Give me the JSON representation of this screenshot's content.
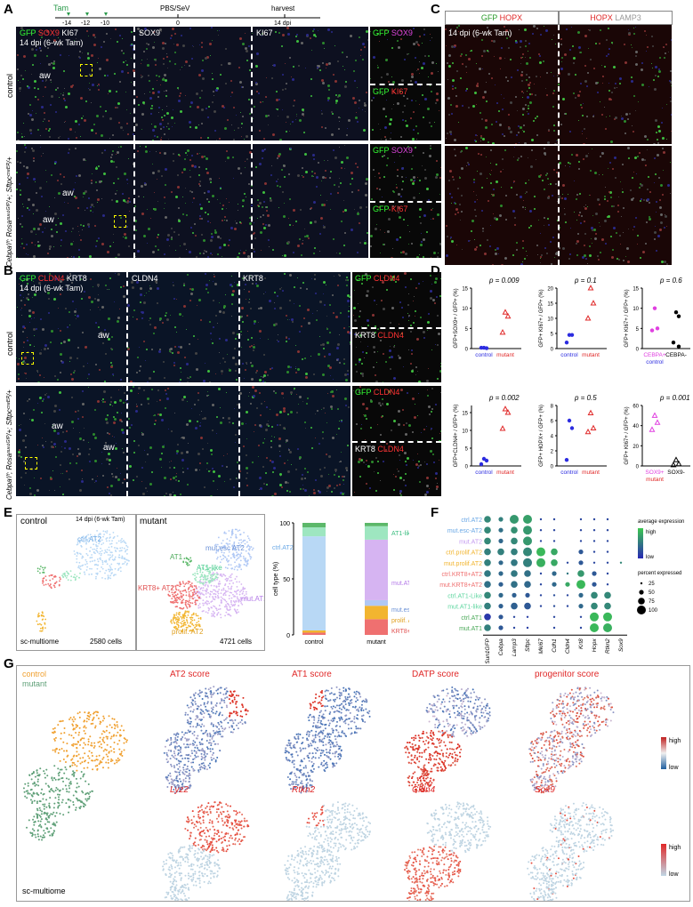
{
  "panels": {
    "A": "A",
    "B": "B",
    "C": "C",
    "D": "D",
    "E": "E",
    "F": "F",
    "G": "G"
  },
  "timeline": {
    "tam": "Tam",
    "days": [
      "-14",
      "-12",
      "-10"
    ],
    "treatment": "PBS/SeV",
    "zero": "0",
    "harvest": "harvest",
    "harvest_day": "14 dpi"
  },
  "panelA": {
    "ctrl_title_parts": [
      "GFP",
      "SOX9",
      "KI67"
    ],
    "ctrl_sub": "14 dpi (6-wk Tam)",
    "col2": "SOX9",
    "col3": "KI67",
    "inset1": [
      "GFP",
      "SOX9"
    ],
    "inset2": [
      "GFP",
      "KI67"
    ],
    "aw": "aw",
    "row_ctrl": "control",
    "row_mut": "Cebpaᶠ/ᶠ; Rosaˢᵘⁿ¹ᴳᶠᴾ/+; Sftpcᶜʳᵉᴱᴿ/+"
  },
  "panelB": {
    "title_parts": [
      "GFP",
      "CLDN4",
      "KRT8"
    ],
    "sub": "14 dpi (6-wk Tam)",
    "col2": "CLDN4",
    "col3": "KRT8",
    "inset1": [
      "GFP",
      "CLDN4"
    ],
    "inset2": [
      "KRT8",
      "CLDN4"
    ],
    "aw": "aw",
    "row_ctrl": "control",
    "row_mut": "Cebpaᶠ/ᶠ; Rosaˢᵘⁿ¹ᴳᶠᴾ/+; Sftpcᶜʳᵉᴱᴿ/+"
  },
  "panelC": {
    "left": [
      "GFP",
      "HOPX"
    ],
    "right": [
      "HOPX",
      "LAMP3"
    ],
    "sub": "14 dpi (6-wk Tam)"
  },
  "panelD": {
    "colors": {
      "control": "#2c2ce0",
      "mutant": "#e02828",
      "magenta": "#e040e0"
    },
    "plots": [
      {
        "p": "p = 0.009",
        "ylabel": "GFP+SOX9+ / GFP+ (%)",
        "yticks": [
          "0",
          "5",
          "10",
          "15"
        ],
        "ymax": 15,
        "xlabels": [
          "control",
          "mutant"
        ],
        "groups": [
          {
            "values": [
              0.2,
              0.1,
              0.2
            ],
            "shape": "circle",
            "color": "control"
          },
          {
            "values": [
              9,
              8,
              4
            ],
            "shape": "triangle",
            "color": "mutant"
          }
        ]
      },
      {
        "p": "p = 0.1",
        "ylabel": "GFP+ KI67+ / GFP+ (%)",
        "yticks": [
          "0",
          "5",
          "10",
          "15",
          "20"
        ],
        "ymax": 20,
        "xlabels": [
          "control",
          "mutant"
        ],
        "groups": [
          {
            "values": [
              4.5,
              4.5,
              2
            ],
            "shape": "circle",
            "color": "control"
          },
          {
            "values": [
              20,
              15,
              10
            ],
            "shape": "triangle",
            "color": "mutant"
          }
        ]
      },
      {
        "p": "p = 0.6",
        "ylabel": "GFP+ KI67+ / GFP+ (%)",
        "yticks": [
          "0",
          "5",
          "10",
          "15"
        ],
        "ymax": 15,
        "xlabels": [
          "CEBPA+",
          "CEBPA-"
        ],
        "xsub": "control",
        "groups": [
          {
            "values": [
              10,
              5,
              4.5
            ],
            "shape": "circle",
            "color": "magenta"
          },
          {
            "values": [
              9,
              8,
              1.5,
              0.5
            ],
            "shape": "circle",
            "color": "black"
          }
        ]
      },
      {
        "p": "p = 0.002",
        "ylabel": "GFP+CLDN4+ / GFP+ (%)",
        "yticks": [
          "0",
          "5",
          "10",
          "15"
        ],
        "ymax": 17,
        "xlabels": [
          "control",
          "mutant"
        ],
        "groups": [
          {
            "values": [
              2,
              1.5,
              0.5
            ],
            "shape": "circle",
            "color": "control"
          },
          {
            "values": [
              16,
              15,
              10.5
            ],
            "shape": "triangle",
            "color": "mutant"
          }
        ]
      },
      {
        "p": "p = 0.5",
        "ylabel": "GFP+ HOPX+ / GFP+ (%)",
        "yticks": [
          "0",
          "2",
          "4",
          "6",
          "8"
        ],
        "ymax": 8,
        "xlabels": [
          "control",
          "mutant"
        ],
        "groups": [
          {
            "values": [
              6,
              5,
              0.8
            ],
            "shape": "circle",
            "color": "control"
          },
          {
            "values": [
              7,
              5,
              4.5
            ],
            "shape": "triangle",
            "color": "mutant"
          }
        ]
      },
      {
        "p": "p = 0.001",
        "ylabel": "GFP+ KI67+ / GFP+ (%)",
        "yticks": [
          "0",
          "20",
          "40",
          "60"
        ],
        "ymax": 60,
        "xlabels": [
          "SOX9+",
          "SOX9-"
        ],
        "xsub": "mutant",
        "groups": [
          {
            "values": [
              50,
              43,
              36
            ],
            "shape": "triangle",
            "color": "magenta"
          },
          {
            "values": [
              6,
              2,
              1
            ],
            "shape": "triangle",
            "color": "black"
          }
        ]
      }
    ]
  },
  "panelE": {
    "ctrl_title": "control",
    "ctrl_sub": "14 dpi (6-wk Tam)",
    "ctrl_count": "2580 cells",
    "assay": "sc-multiome",
    "mut_title": "mutant",
    "mut_count": "4721 cells",
    "ctrl_labels": [
      "ctrl.AT2"
    ],
    "mut_labels": [
      "mut.esc AT2",
      "AT1",
      "AT1-like",
      "KRT8+ AT2",
      "mut.AT2",
      "prolif. AT2"
    ],
    "bar": {
      "ylabel": "cell type (%)",
      "yticks": [
        "0",
        "50",
        "100"
      ],
      "xlabels": [
        "control",
        "mutant"
      ],
      "categories": [
        "KRT8+ AT2",
        "prolif. AT2",
        "mut.esc AT2",
        "mut.AT2",
        "ctrl.AT2",
        "AT1-like",
        "AT1"
      ],
      "colors": [
        "#ef7070",
        "#f2b530",
        "#b0c8f5",
        "#d6b4f2",
        "#b8d8f5",
        "#9ee6c0",
        "#5cb86a"
      ],
      "control": [
        2,
        2,
        0,
        0,
        84,
        8,
        4
      ],
      "mutant": [
        14,
        12,
        5,
        54,
        0,
        12,
        3
      ],
      "labels": [
        "ctrl.AT2",
        "AT1-like",
        "mut.AT2",
        "mut.esc AT2",
        "prolif. AT2",
        "KRT8+ AT2"
      ]
    }
  },
  "panelF": {
    "rows": [
      "ctrl.AT2",
      "mut.esc-AT2",
      "mut.AT2",
      "ctrl.prolif.AT2",
      "mut.prolif.AT2",
      "ctrl.KRT8+AT2",
      "mut.KRT8+AT2",
      "ctrl.AT1-Like",
      "mut.AT1-like",
      "ctrl.AT1",
      "mut.AT1"
    ],
    "row_colors": [
      "#6aa8e6",
      "#6aa8e6",
      "#c49bf0",
      "#f2b530",
      "#f2b530",
      "#ef7070",
      "#ef7070",
      "#5fd6a0",
      "#5fd6a0",
      "#4caa5a",
      "#4caa5a"
    ],
    "genes": [
      "Sun1GFP",
      "Cebpa",
      "Lamp3",
      "Sftpc",
      "Mki67",
      "Cdh1",
      "Cldn4",
      "Krt8",
      "Hopx",
      "Rtkn2",
      "Sox9"
    ],
    "legend_title": "average expression",
    "legend_high": "high",
    "legend_low": "low",
    "size_title": "percent expressed",
    "size_levels": [
      "25",
      "50",
      "75",
      "100"
    ],
    "sizes": [
      [
        3,
        2,
        4,
        4,
        1,
        1,
        0,
        1,
        1,
        1,
        0
      ],
      [
        3,
        2,
        3,
        4,
        1,
        1,
        0,
        1,
        1,
        1,
        0
      ],
      [
        3,
        2,
        3,
        4,
        1,
        1,
        0,
        1,
        1,
        1,
        0
      ],
      [
        3,
        3,
        3,
        4,
        4,
        3,
        0,
        2,
        1,
        1,
        0
      ],
      [
        3,
        2,
        3,
        4,
        4,
        3,
        1,
        2,
        1,
        1,
        1
      ],
      [
        3,
        2,
        3,
        3,
        1,
        2,
        1,
        3,
        2,
        1,
        0
      ],
      [
        3,
        2,
        3,
        3,
        1,
        2,
        2,
        4,
        2,
        1,
        0
      ],
      [
        3,
        2,
        2,
        2,
        1,
        1,
        1,
        2,
        3,
        3,
        0
      ],
      [
        3,
        2,
        3,
        3,
        1,
        1,
        1,
        2,
        3,
        3,
        0
      ],
      [
        3,
        2,
        1,
        1,
        0,
        1,
        0,
        1,
        4,
        4,
        0
      ],
      [
        3,
        2,
        1,
        1,
        0,
        1,
        0,
        1,
        4,
        4,
        0
      ]
    ],
    "expr": [
      [
        0.6,
        0.55,
        0.7,
        0.75,
        0.2,
        0.2,
        0.1,
        0.2,
        0.2,
        0.2,
        0.1
      ],
      [
        0.6,
        0.45,
        0.65,
        0.7,
        0.2,
        0.2,
        0.1,
        0.2,
        0.2,
        0.2,
        0.1
      ],
      [
        0.6,
        0.4,
        0.6,
        0.7,
        0.2,
        0.2,
        0.1,
        0.2,
        0.2,
        0.2,
        0.1
      ],
      [
        0.55,
        0.55,
        0.55,
        0.6,
        0.9,
        0.8,
        0.1,
        0.3,
        0.2,
        0.2,
        0.1
      ],
      [
        0.55,
        0.4,
        0.5,
        0.55,
        0.85,
        0.8,
        0.2,
        0.3,
        0.2,
        0.2,
        0.6
      ],
      [
        0.5,
        0.4,
        0.5,
        0.45,
        0.2,
        0.4,
        0.5,
        0.7,
        0.3,
        0.2,
        0.1
      ],
      [
        0.45,
        0.35,
        0.45,
        0.4,
        0.2,
        0.4,
        0.8,
        0.9,
        0.3,
        0.2,
        0.1
      ],
      [
        0.6,
        0.4,
        0.35,
        0.3,
        0.2,
        0.25,
        0.2,
        0.4,
        0.6,
        0.6,
        0.1
      ],
      [
        0.55,
        0.35,
        0.35,
        0.3,
        0.2,
        0.25,
        0.2,
        0.4,
        0.6,
        0.6,
        0.1
      ],
      [
        0.1,
        0.3,
        0.2,
        0.15,
        0.1,
        0.2,
        0.1,
        0.2,
        0.9,
        0.9,
        0.1
      ],
      [
        0.55,
        0.3,
        0.2,
        0.15,
        0.1,
        0.2,
        0.1,
        0.2,
        0.9,
        0.85,
        0.1
      ]
    ]
  },
  "panelG": {
    "legend": [
      "control",
      "mutant"
    ],
    "legend_colors": [
      "#f0a030",
      "#5fa078"
    ],
    "assay": "sc-multiome",
    "top_titles": [
      "AT2 score",
      "AT1 score",
      "DATP score",
      "progenitor score"
    ],
    "bottom_titles": [
      "Lyz2",
      "Rtkn2",
      "Cldn4",
      "Sox9"
    ],
    "scale_high": "high",
    "scale_low": "low"
  }
}
